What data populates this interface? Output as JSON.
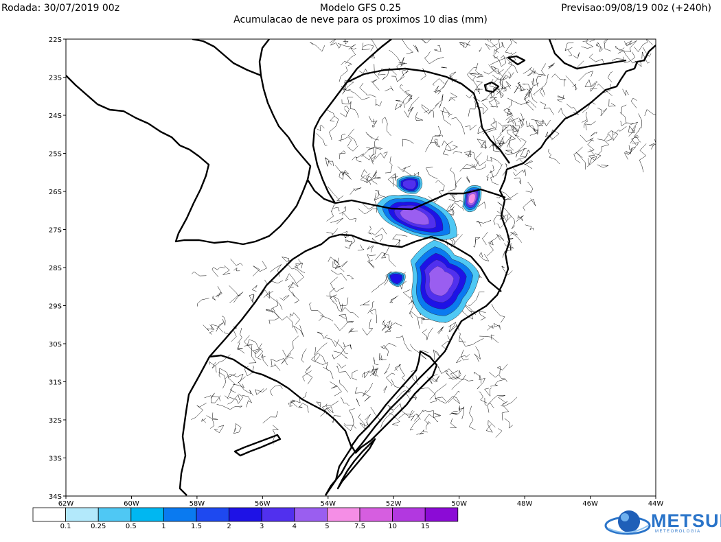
{
  "header": {
    "run_label": "Rodada: 30/07/2019 00z",
    "model_label": "Modelo GFS 0.25",
    "subtitle": "Acumulacao de neve para os proximos 10 dias (mm)",
    "forecast_label": "Previsao:09/08/19 00z (+240h)"
  },
  "map": {
    "lat_ticks": [
      "22S",
      "23S",
      "24S",
      "25S",
      "26S",
      "27S",
      "28S",
      "29S",
      "30S",
      "31S",
      "32S",
      "33S",
      "34S"
    ],
    "lon_ticks": [
      "62W",
      "60W",
      "58W",
      "56W",
      "54W",
      "52W",
      "50W",
      "48W",
      "46W",
      "44W"
    ],
    "lon_range": [
      -62,
      -44
    ],
    "lat_range": [
      -34,
      -22
    ],
    "snow_colors": [
      "#ffffff",
      "#b3e9fb",
      "#4fc8f4",
      "#00b7f1",
      "#0a7af0",
      "#1e49f0",
      "#1e12e6",
      "#5130ee",
      "#9a5ef0",
      "#f58ee6",
      "#d65ee0",
      "#b238e0",
      "#8b0bd6"
    ]
  },
  "colorbar": {
    "labels": [
      "0.1",
      "0.25",
      "0.5",
      "1",
      "1.5",
      "2",
      "3",
      "4",
      "5",
      "7.5",
      "10",
      "15"
    ],
    "colors": [
      "#ffffff",
      "#b3e9fb",
      "#4fc8f4",
      "#00b7f1",
      "#0a7af0",
      "#1e49f0",
      "#1e12e6",
      "#5130ee",
      "#9a5ef0",
      "#f58ee6",
      "#d65ee0",
      "#b238e0",
      "#8b0bd6"
    ]
  },
  "logo": {
    "name": "METSUL",
    "tagline": "METEOROLOGIA"
  }
}
